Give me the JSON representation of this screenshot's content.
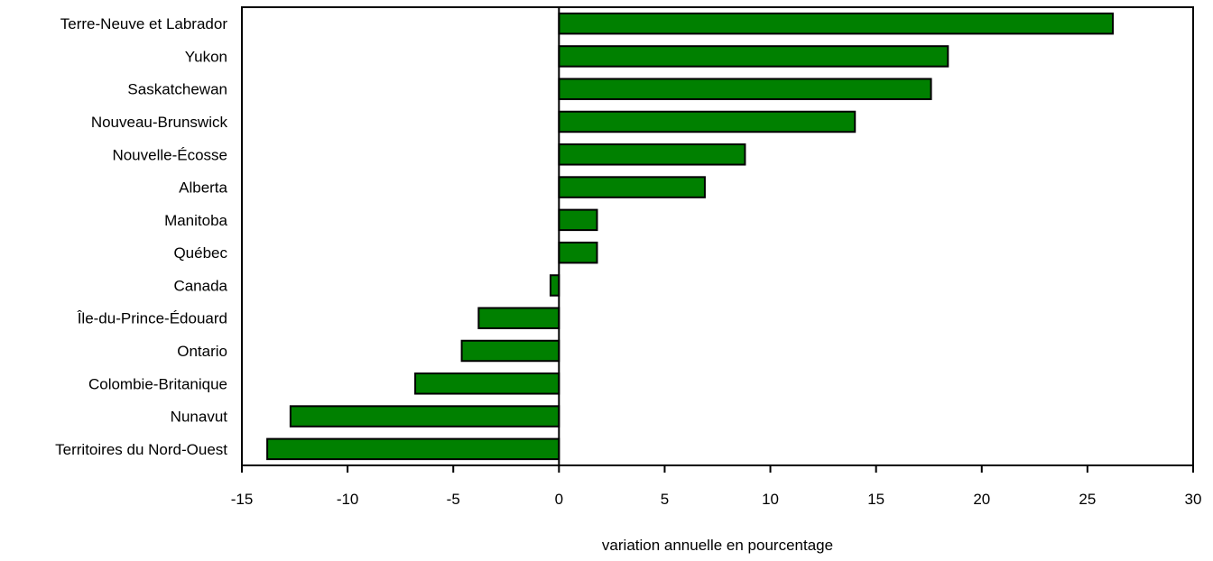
{
  "chart_data": {
    "type": "bar",
    "orientation": "horizontal",
    "title": "",
    "xlabel": "variation annuelle en pourcentage",
    "ylabel": "",
    "xlim": [
      -15,
      30
    ],
    "xticks": [
      -15,
      -10,
      -5,
      0,
      5,
      10,
      15,
      20,
      25,
      30
    ],
    "grid": false,
    "legend": "none",
    "bar_color": "#008000",
    "bar_edge_color": "#000000",
    "categories": [
      "Terre-Neuve et Labrador",
      "Yukon",
      "Saskatchewan",
      "Nouveau-Brunswick",
      "Nouvelle-Écosse",
      "Alberta",
      "Manitoba",
      "Québec",
      "Canada",
      "Île-du-Prince-Édouard",
      "Ontario",
      "Colombie-Britanique",
      "Nunavut",
      "Territoires du Nord-Ouest"
    ],
    "values": [
      26.2,
      18.4,
      17.6,
      14.0,
      8.8,
      6.9,
      1.8,
      1.8,
      -0.4,
      -3.8,
      -4.6,
      -6.8,
      -12.7,
      -13.8
    ]
  }
}
